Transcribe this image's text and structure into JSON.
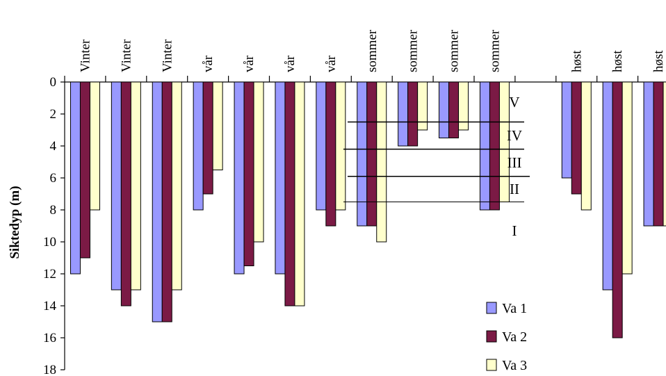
{
  "chart_data": {
    "type": "bar",
    "orientation": "vertical-downward",
    "categories": [
      "Vinter",
      "Vinter",
      "Vinter",
      "vår",
      "vår",
      "vår",
      "vår",
      "sommer",
      "sommer",
      "sommer",
      "sommer",
      "",
      "høst",
      "høst",
      "høst"
    ],
    "series": [
      {
        "name": "Va 1",
        "color": "#9999ff",
        "values": [
          12,
          13,
          15,
          8,
          12,
          12,
          8,
          9,
          4,
          3.5,
          8,
          null,
          6,
          13,
          9
        ]
      },
      {
        "name": "Va 2",
        "color": "#7b1a45",
        "values": [
          11,
          14,
          15,
          7,
          11.5,
          14,
          9,
          9,
          4,
          3.5,
          8,
          null,
          7,
          16,
          9
        ]
      },
      {
        "name": "Va 3",
        "color": "#ffffcc",
        "values": [
          8,
          13,
          13,
          5.5,
          10,
          14,
          8,
          10,
          3,
          3,
          7.5,
          null,
          8,
          12,
          9
        ]
      }
    ],
    "ylabel": "Siktedyp (m)",
    "ylim": [
      0,
      18
    ],
    "y_inverted": true,
    "yticks": [
      0,
      2,
      4,
      6,
      8,
      10,
      12,
      14,
      16,
      18
    ],
    "legend_position": "bottom-right",
    "zones": [
      {
        "label": "V",
        "top": 0,
        "bottom": 2.5
      },
      {
        "label": "IV",
        "top": 2.5,
        "bottom": 4.2
      },
      {
        "label": "III",
        "top": 4.2,
        "bottom": 5.9
      },
      {
        "label": "II",
        "top": 5.9,
        "bottom": 7.5
      },
      {
        "label": "I",
        "top": 7.5,
        "bottom": null
      }
    ]
  }
}
